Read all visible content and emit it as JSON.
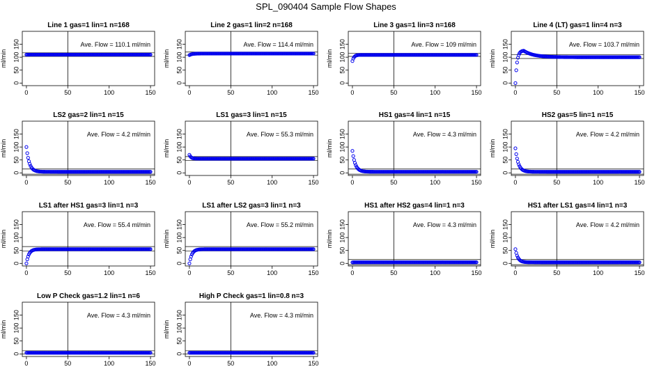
{
  "figure": {
    "title": "SPL_090404  Sample Flow Shapes"
  },
  "axis": {
    "ylabel": "ml/min",
    "xticks": [
      0,
      50,
      100,
      150
    ],
    "yticks": [
      0,
      50,
      100,
      150
    ],
    "xlim": [
      -5,
      155
    ],
    "ylim": [
      -10,
      200
    ]
  },
  "colors": {
    "points": "#0000ee",
    "frame": "#000000"
  },
  "chart_data": [
    {
      "type": "scatter",
      "title": "Line 1 gas=1 lin=1 n=168",
      "annotation": "Ave. Flow =  110.1  ml/min",
      "mean": 110.1,
      "hlines": [
        117,
        103
      ],
      "vline": 50,
      "curve": {
        "y0": 110,
        "start": 110,
        "tau": 1
      }
    },
    {
      "type": "scatter",
      "title": "Line 2 gas=1 lin=2 n=168",
      "annotation": "Ave. Flow =  114.4  ml/min",
      "mean": 114.4,
      "hlines": [
        120,
        108
      ],
      "vline": 50,
      "curve": {
        "y0": 114,
        "start": 108,
        "tau": 3
      }
    },
    {
      "type": "scatter",
      "title": "Line 3 gas=1 lin=3 n=168",
      "annotation": "Ave. Flow =  109  ml/min",
      "mean": 109,
      "hlines": [
        115,
        103
      ],
      "vline": 50,
      "curve": {
        "y0": 109,
        "start": 85,
        "tau": 2
      }
    },
    {
      "type": "scatter",
      "title": "Line 4 (LT) gas=1 lin=4 n=3",
      "annotation": "Ave. Flow =  103.7  ml/min",
      "mean": 103.7,
      "hlines": [
        110,
        95
      ],
      "vline": 50,
      "curve": {
        "y0": 100,
        "start": 0,
        "tau": 2,
        "peak": 125,
        "peakAt": 10
      }
    },
    {
      "type": "scatter",
      "title": "LS2 gas=2 lin=1 n=15",
      "annotation": "Ave. Flow =  4.2  ml/min",
      "mean": 4.2,
      "hlines": [
        15,
        -5
      ],
      "vline": 50,
      "curve": {
        "y0": 4.2,
        "start": 100,
        "tau": 3.5
      }
    },
    {
      "type": "scatter",
      "title": "LS1 gas=3 lin=1 n=15",
      "annotation": "Ave. Flow =  55.3  ml/min",
      "mean": 55.3,
      "hlines": [
        63,
        48
      ],
      "vline": 50,
      "curve": {
        "y0": 55,
        "start": 70,
        "tau": 2
      }
    },
    {
      "type": "scatter",
      "title": "HS1 gas=4 lin=1 n=15",
      "annotation": "Ave. Flow =  4.3  ml/min",
      "mean": 4.3,
      "hlines": [
        15,
        -5
      ],
      "vline": 50,
      "curve": {
        "y0": 4.3,
        "start": 85,
        "tau": 3.5
      }
    },
    {
      "type": "scatter",
      "title": "HS2 gas=5 lin=1 n=15",
      "annotation": "Ave. Flow =  4.2  ml/min",
      "mean": 4.2,
      "hlines": [
        15,
        -5
      ],
      "vline": 50,
      "curve": {
        "y0": 4.2,
        "start": 95,
        "tau": 3.5
      }
    },
    {
      "type": "scatter",
      "title": "LS1 after HS1 gas=3 lin=1 n=3",
      "annotation": "Ave. Flow =  55.4  ml/min",
      "mean": 55.4,
      "hlines": [
        65,
        48
      ],
      "vline": 50,
      "curve": {
        "y0": 55,
        "start": 0,
        "tau": 3
      }
    },
    {
      "type": "scatter",
      "title": "LS1 after LS2 gas=3 lin=1 n=3",
      "annotation": "Ave. Flow =  55.2  ml/min",
      "mean": 55.2,
      "hlines": [
        65,
        48
      ],
      "vline": 50,
      "curve": {
        "y0": 55,
        "start": 0,
        "tau": 3
      }
    },
    {
      "type": "scatter",
      "title": "HS1 after HS2 gas=4 lin=1 n=3",
      "annotation": "Ave. Flow =  4.3  ml/min",
      "mean": 4.3,
      "hlines": [
        15,
        -5
      ],
      "vline": 50,
      "curve": {
        "y0": 4.3,
        "start": 4,
        "tau": 1
      }
    },
    {
      "type": "scatter",
      "title": "HS1 after LS1 gas=4 lin=1 n=3",
      "annotation": "Ave. Flow =  4.2  ml/min",
      "mean": 4.2,
      "hlines": [
        15,
        -5
      ],
      "vline": 50,
      "curve": {
        "y0": 4.2,
        "start": 55,
        "tau": 3
      }
    },
    {
      "type": "scatter",
      "title": "Low P Check gas=1.2 lin=1 n=6",
      "annotation": "Ave. Flow =  4.3  ml/min",
      "mean": 4.3,
      "hlines": [
        12,
        0
      ],
      "vline": 50,
      "curve": {
        "y0": 4.3,
        "start": 4.3,
        "tau": 1
      }
    },
    {
      "type": "scatter",
      "title": "High P Check gas=1 lin=0.8 n=3",
      "annotation": "Ave. Flow =  4.3  ml/min",
      "mean": 4.3,
      "hlines": [
        12,
        0
      ],
      "vline": 50,
      "curve": {
        "y0": 4.3,
        "start": 4.3,
        "tau": 1
      }
    }
  ]
}
